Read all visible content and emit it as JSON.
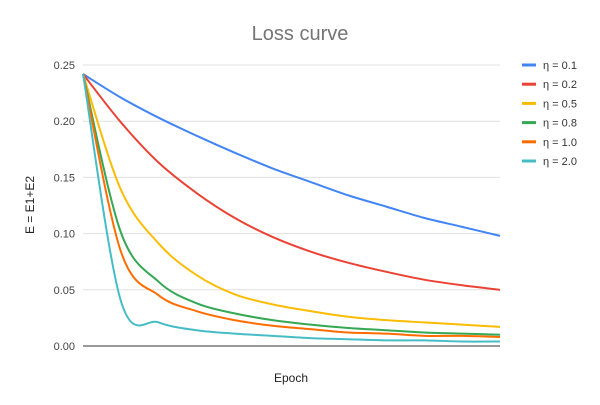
{
  "chart_data": {
    "type": "line",
    "title": "Loss curve",
    "xlabel": "Epoch",
    "ylabel": "E = E1+E2",
    "ylim": [
      0,
      0.25
    ],
    "yticks": [
      "0.00",
      "0.05",
      "0.10",
      "0.15",
      "0.20",
      "0.25"
    ],
    "ytick_values": [
      0,
      0.05,
      0.1,
      0.15,
      0.2,
      0.25
    ],
    "grid": "horizontal",
    "legend_position": "right",
    "series": [
      {
        "name": "η = 0.1",
        "color": "#4285F4",
        "values": [
          0.242,
          0.221,
          0.203,
          0.187,
          0.172,
          0.158,
          0.146,
          0.134,
          0.124,
          0.114,
          0.106,
          0.098
        ]
      },
      {
        "name": "η = 0.2",
        "color": "#EA4335",
        "values": [
          0.242,
          0.199,
          0.163,
          0.136,
          0.114,
          0.097,
          0.084,
          0.074,
          0.066,
          0.059,
          0.054,
          0.05
        ]
      },
      {
        "name": "η = 0.5",
        "color": "#FBBC04",
        "values": [
          0.242,
          0.139,
          0.091,
          0.063,
          0.046,
          0.037,
          0.031,
          0.026,
          0.023,
          0.021,
          0.019,
          0.017
        ]
      },
      {
        "name": "η = 0.8",
        "color": "#34A853",
        "values": [
          0.242,
          0.101,
          0.057,
          0.038,
          0.029,
          0.023,
          0.019,
          0.016,
          0.014,
          0.012,
          0.011,
          0.01
        ]
      },
      {
        "name": "η = 1.0",
        "color": "#FF6D01",
        "values": [
          0.242,
          0.084,
          0.045,
          0.031,
          0.023,
          0.018,
          0.015,
          0.012,
          0.011,
          0.009,
          0.009,
          0.008
        ]
      },
      {
        "name": "η = 2.0",
        "color": "#46BDC6",
        "values": [
          0.242,
          0.04,
          0.021,
          0.014,
          0.011,
          0.009,
          0.007,
          0.006,
          0.005,
          0.005,
          0.004,
          0.004
        ]
      }
    ]
  }
}
